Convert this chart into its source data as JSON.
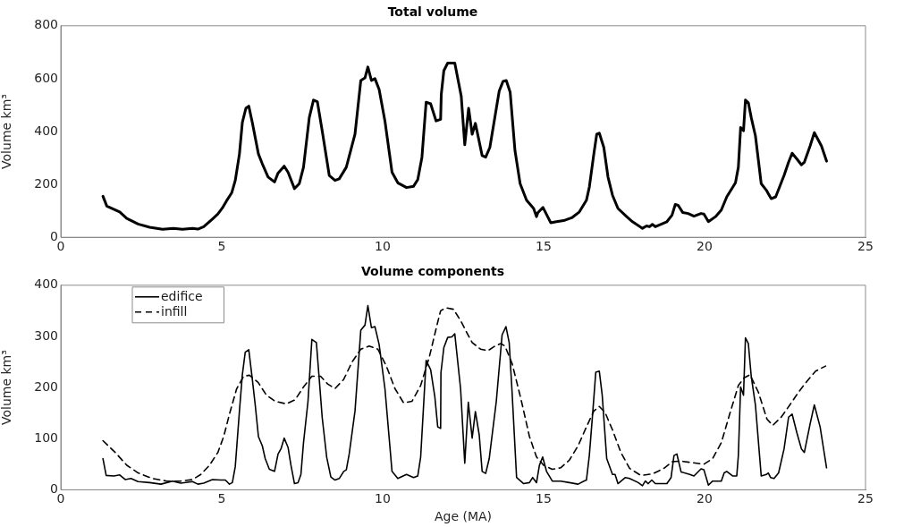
{
  "chart_data": [
    {
      "type": "line",
      "title": "Total volume",
      "ylabel": "Volume km³",
      "xlim": [
        0,
        25
      ],
      "xticks": [
        0,
        5,
        10,
        15,
        20,
        25
      ],
      "ylim": [
        0,
        800
      ],
      "yticks": [
        0,
        200,
        400,
        600,
        800
      ],
      "grid": false,
      "legend": false,
      "marker": "none",
      "series": [
        {
          "color": "#000000",
          "line_style": "solid",
          "x": [
            1.31,
            1.43,
            1.83,
            2.05,
            2.4,
            2.76,
            3.16,
            3.5,
            3.78,
            4.09,
            4.26,
            4.44,
            4.71,
            4.88,
            5.02,
            5.15,
            5.31,
            5.42,
            5.55,
            5.64,
            5.75,
            5.84,
            5.95,
            6.14,
            6.26,
            6.44,
            6.64,
            6.75,
            6.94,
            7.06,
            7.26,
            7.41,
            7.54,
            7.72,
            7.85,
            7.97,
            8.12,
            8.34,
            8.52,
            8.65,
            8.87,
            9.14,
            9.32,
            9.45,
            9.54,
            9.65,
            9.76,
            9.89,
            10.07,
            10.29,
            10.47,
            10.74,
            10.96,
            11.09,
            11.22,
            11.35,
            11.49,
            11.66,
            11.8,
            11.82,
            11.9,
            12.02,
            12.24,
            12.44,
            12.55,
            12.67,
            12.78,
            12.88,
            13.09,
            13.2,
            13.33,
            13.62,
            13.74,
            13.84,
            13.96,
            14.11,
            14.27,
            14.47,
            14.69,
            14.78,
            14.82,
            14.98,
            15.22,
            15.4,
            15.62,
            15.89,
            16.11,
            16.33,
            16.42,
            16.56,
            16.65,
            16.73,
            16.87,
            17.0,
            17.14,
            17.31,
            17.58,
            17.76,
            18.07,
            18.2,
            18.29,
            18.38,
            18.47,
            18.83,
            18.99,
            19.09,
            19.18,
            19.32,
            19.49,
            19.67,
            19.89,
            19.98,
            20.12,
            20.34,
            20.52,
            20.69,
            20.96,
            21.05,
            21.12,
            21.21,
            21.27,
            21.36,
            21.45,
            21.58,
            21.76,
            21.92,
            21.98,
            22.07,
            22.21,
            22.47,
            22.61,
            22.72,
            22.87,
            23.01,
            23.1,
            23.28,
            23.41,
            23.63,
            23.79
          ],
          "values": [
            155,
            118,
            96,
            71,
            50,
            38,
            30,
            34,
            30,
            34,
            31,
            40,
            69,
            88,
            111,
            138,
            168,
            215,
            315,
            434,
            488,
            496,
            434,
            315,
            278,
            228,
            209,
            243,
            269,
            246,
            184,
            203,
            265,
            453,
            519,
            513,
            403,
            234,
            215,
            221,
            265,
            390,
            593,
            603,
            644,
            593,
            600,
            559,
            440,
            246,
            206,
            188,
            193,
            218,
            303,
            511,
            505,
            440,
            446,
            540,
            630,
            659,
            659,
            534,
            350,
            488,
            390,
            431,
            309,
            303,
            340,
            553,
            590,
            593,
            549,
            328,
            203,
            140,
            109,
            78,
            93,
            113,
            55,
            59,
            63,
            75,
            96,
            140,
            190,
            315,
            390,
            394,
            340,
            228,
            159,
            109,
            78,
            59,
            34,
            43,
            40,
            49,
            40,
            59,
            84,
            124,
            121,
            94,
            90,
            80,
            90,
            88,
            59,
            78,
            103,
            153,
            206,
            265,
            415,
            403,
            519,
            509,
            453,
            384,
            203,
            178,
            165,
            146,
            153,
            234,
            284,
            318,
            296,
            274,
            284,
            346,
            396,
            346,
            288
          ]
        }
      ]
    },
    {
      "type": "line",
      "title": "Volume components",
      "xlabel": "Age (MA)",
      "ylabel": "Volume km³",
      "xlim": [
        0,
        25
      ],
      "xticks": [
        0,
        5,
        10,
        15,
        20,
        25
      ],
      "ylim": [
        0,
        400
      ],
      "yticks": [
        0,
        100,
        200,
        300,
        400
      ],
      "grid": false,
      "legend": "top left",
      "marker": "none",
      "series": [
        {
          "name": "edifice",
          "color": "#000000",
          "line_style": "solid",
          "x": [
            1.31,
            1.41,
            1.65,
            1.83,
            2.0,
            2.18,
            2.4,
            2.76,
            3.11,
            3.47,
            3.73,
            4.09,
            4.26,
            4.44,
            4.71,
            4.97,
            5.11,
            5.24,
            5.33,
            5.42,
            5.55,
            5.64,
            5.73,
            5.84,
            5.95,
            6.04,
            6.14,
            6.26,
            6.35,
            6.48,
            6.64,
            6.75,
            6.84,
            6.94,
            7.06,
            7.15,
            7.26,
            7.37,
            7.46,
            7.54,
            7.68,
            7.8,
            7.94,
            8.03,
            8.12,
            8.26,
            8.39,
            8.52,
            8.65,
            8.79,
            8.87,
            8.96,
            9.14,
            9.32,
            9.45,
            9.54,
            9.65,
            9.76,
            9.89,
            10.07,
            10.29,
            10.47,
            10.74,
            10.96,
            11.09,
            11.18,
            11.35,
            11.49,
            11.62,
            11.71,
            11.8,
            11.81,
            11.9,
            12.02,
            12.15,
            12.24,
            12.42,
            12.55,
            12.66,
            12.78,
            12.88,
            13.0,
            13.09,
            13.2,
            13.31,
            13.53,
            13.71,
            13.83,
            13.93,
            14.02,
            14.16,
            14.38,
            14.56,
            14.66,
            14.78,
            14.87,
            14.97,
            15.09,
            15.27,
            15.53,
            15.8,
            16.07,
            16.25,
            16.33,
            16.42,
            16.53,
            16.62,
            16.73,
            16.82,
            16.96,
            17.14,
            17.22,
            17.31,
            17.54,
            17.67,
            17.94,
            18.07,
            18.16,
            18.25,
            18.36,
            18.47,
            18.83,
            18.96,
            19.05,
            19.14,
            19.27,
            19.54,
            19.67,
            19.89,
            19.98,
            20.12,
            20.25,
            20.52,
            20.61,
            20.69,
            20.87,
            21.0,
            21.05,
            21.12,
            21.21,
            21.27,
            21.36,
            21.45,
            21.58,
            21.76,
            21.92,
            21.98,
            22.05,
            22.16,
            22.3,
            22.47,
            22.61,
            22.72,
            22.87,
            23.01,
            23.1,
            23.28,
            23.41,
            23.59,
            23.79
          ],
          "values": [
            61,
            28,
            27,
            29,
            20,
            22,
            16,
            14,
            11,
            17,
            13,
            16,
            11,
            13,
            20,
            19,
            19,
            11,
            14,
            45,
            154,
            225,
            269,
            274,
            216,
            166,
            104,
            86,
            61,
            40,
            36,
            70,
            80,
            101,
            83,
            48,
            12,
            14,
            30,
            92,
            173,
            294,
            288,
            216,
            142,
            64,
            25,
            19,
            22,
            36,
            39,
            70,
            154,
            312,
            322,
            360,
            317,
            319,
            284,
            198,
            36,
            22,
            30,
            24,
            27,
            64,
            253,
            235,
            182,
            123,
            120,
            229,
            278,
            298,
            299,
            305,
            198,
            52,
            171,
            101,
            153,
            107,
            36,
            32,
            61,
            173,
            303,
            319,
            288,
            191,
            24,
            12,
            14,
            24,
            14,
            48,
            64,
            36,
            17,
            17,
            14,
            11,
            17,
            19,
            67,
            154,
            230,
            232,
            185,
            61,
            30,
            30,
            12,
            24,
            22,
            14,
            8,
            17,
            12,
            19,
            12,
            12,
            24,
            67,
            70,
            35,
            30,
            27,
            41,
            39,
            9,
            17,
            17,
            33,
            36,
            27,
            27,
            67,
            201,
            185,
            297,
            286,
            222,
            166,
            27,
            30,
            33,
            24,
            22,
            33,
            80,
            142,
            148,
            111,
            80,
            73,
            129,
            166,
            123,
            43
          ]
        },
        {
          "name": "infill",
          "color": "#000000",
          "line_style": "dashed",
          "x": [
            1.31,
            1.69,
            2.05,
            2.4,
            2.85,
            3.29,
            3.73,
            4.09,
            4.35,
            4.62,
            4.88,
            5.06,
            5.24,
            5.46,
            5.68,
            5.86,
            6.13,
            6.39,
            6.66,
            7.01,
            7.28,
            7.54,
            7.8,
            8.07,
            8.29,
            8.52,
            8.79,
            9.05,
            9.32,
            9.58,
            9.85,
            10.12,
            10.38,
            10.65,
            10.91,
            11.18,
            11.45,
            11.71,
            11.8,
            11.97,
            12.2,
            12.42,
            12.6,
            12.78,
            13.04,
            13.27,
            13.49,
            13.67,
            13.8,
            14.02,
            14.29,
            14.56,
            14.78,
            15.0,
            15.27,
            15.53,
            15.8,
            16.07,
            16.33,
            16.56,
            16.73,
            16.91,
            17.14,
            17.4,
            17.67,
            18.02,
            18.38,
            18.74,
            19.0,
            19.27,
            19.63,
            19.98,
            20.25,
            20.52,
            20.78,
            21.05,
            21.23,
            21.41,
            21.67,
            21.94,
            22.12,
            22.38,
            22.65,
            22.92,
            23.19,
            23.45,
            23.76
          ],
          "values": [
            96,
            73,
            48,
            33,
            22,
            17,
            17,
            20,
            30,
            48,
            73,
            104,
            148,
            197,
            222,
            224,
            210,
            185,
            173,
            168,
            176,
            201,
            222,
            222,
            207,
            198,
            216,
            250,
            275,
            281,
            275,
            241,
            198,
            170,
            173,
            204,
            260,
            328,
            350,
            356,
            353,
            331,
            309,
            288,
            275,
            272,
            281,
            286,
            281,
            247,
            179,
            104,
            64,
            48,
            40,
            43,
            58,
            86,
            123,
            154,
            163,
            151,
            117,
            73,
            42,
            28,
            31,
            42,
            55,
            56,
            53,
            50,
            61,
            92,
            148,
            204,
            219,
            225,
            191,
            138,
            126,
            142,
            166,
            191,
            213,
            232,
            242
          ]
        }
      ]
    }
  ]
}
